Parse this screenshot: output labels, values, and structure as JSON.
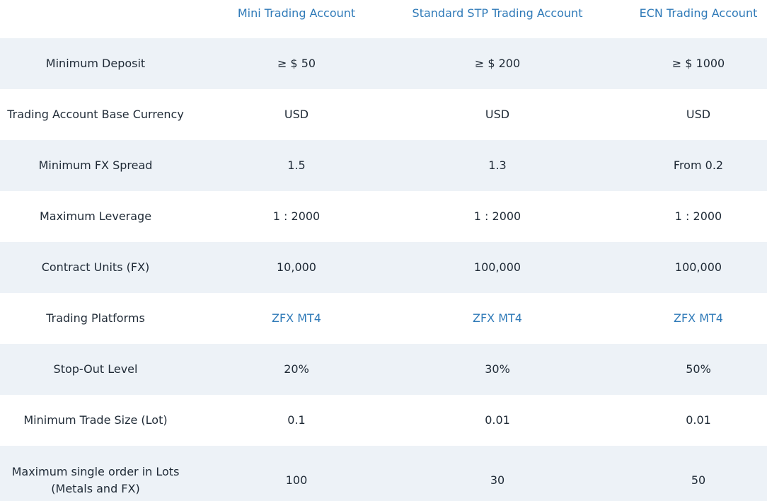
{
  "header": {
    "columns": [
      "",
      "Mini Trading Account",
      "Standard STP Trading Account",
      "ECN Trading Account"
    ]
  },
  "rows": [
    {
      "label": "Minimum Deposit",
      "values": [
        "≥ $ 50",
        "≥ $ 200",
        "≥ $ 1000"
      ]
    },
    {
      "label": "Trading Account Base Currency",
      "values": [
        "USD",
        "USD",
        "USD"
      ]
    },
    {
      "label": "Minimum FX Spread",
      "values": [
        "1.5",
        "1.3",
        "From 0.2"
      ]
    },
    {
      "label": "Maximum Leverage",
      "values": [
        "1 : 2000",
        "1 : 2000",
        "1 : 2000"
      ]
    },
    {
      "label": "Contract Units (FX)",
      "values": [
        "10,000",
        "100,000",
        "100,000"
      ]
    },
    {
      "label": "Trading Platforms",
      "values": [
        "ZFX MT4",
        "ZFX MT4",
        "ZFX MT4"
      ]
    },
    {
      "label": "Stop-Out Level",
      "values": [
        "20%",
        "30%",
        "50%"
      ]
    },
    {
      "label": "Minimum Trade Size (Lot)",
      "values": [
        "0.1",
        "0.01",
        "0.01"
      ]
    },
    {
      "label_line1": "Maximum single order in Lots",
      "label_line2": "(Metals and FX)",
      "values": [
        "100",
        "30",
        "50"
      ]
    }
  ],
  "colors": {
    "accent": "#2f7ab8",
    "shaded_row": "#edf2f7",
    "text": "#1f2a36"
  }
}
